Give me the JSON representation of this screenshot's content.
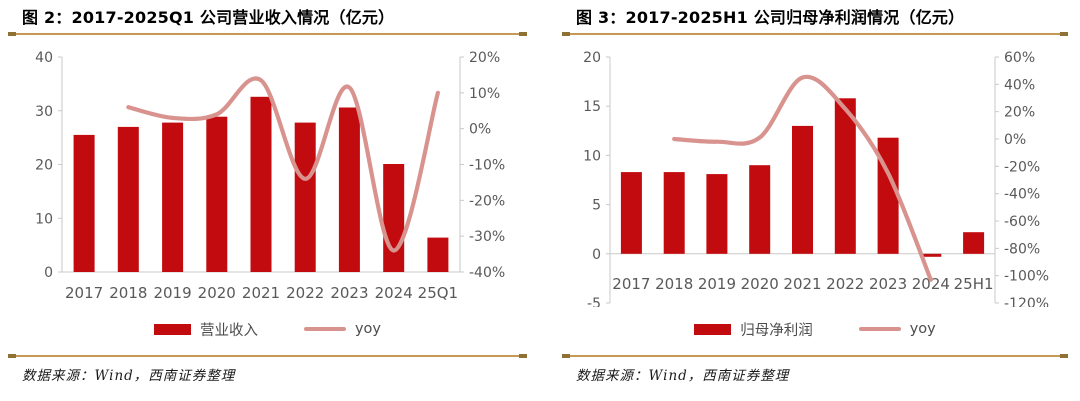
{
  "colors": {
    "bar_red": "#c20b0e",
    "line_pink": "#d9938f",
    "gold_rule": "#c49a55",
    "gold_cap": "#8f7136",
    "axis_text": "#595959",
    "axis_line": "#c9c9c9"
  },
  "figures": [
    {
      "title": "图 2：2017-2025Q1 公司营业收入情况（亿元）",
      "legend": {
        "bar_label": "营业收入",
        "line_label": "yoy"
      },
      "source": "数据来源：Wind，西南证券整理"
    },
    {
      "title": "图 3：2017-2025H1 公司归母净利润情况（亿元）",
      "legend": {
        "bar_label": "归母净利润",
        "line_label": "yoy"
      },
      "source": "数据来源：Wind，西南证券整理"
    }
  ],
  "chart_data": [
    {
      "type": "bar",
      "title": "2017-2025Q1 公司营业收入情况（亿元）",
      "categories": [
        "2017",
        "2018",
        "2019",
        "2020",
        "2021",
        "2022",
        "2023",
        "2024",
        "25Q1"
      ],
      "series": [
        {
          "name": "营业收入",
          "kind": "bar",
          "axis": "left",
          "values": [
            25.5,
            27.0,
            27.8,
            28.9,
            32.6,
            27.8,
            30.6,
            20.1,
            6.4
          ]
        },
        {
          "name": "yoy",
          "kind": "line",
          "axis": "right",
          "values": [
            null,
            6,
            3,
            4,
            13.5,
            -14,
            11.5,
            -34,
            10
          ]
        }
      ],
      "left_axis": {
        "min": 0,
        "max": 40,
        "ticks": [
          0,
          10,
          20,
          30,
          40
        ],
        "unit": ""
      },
      "right_axis": {
        "min": -40,
        "max": 20,
        "ticks": [
          -40,
          -30,
          -20,
          -10,
          0,
          10,
          20
        ],
        "unit": "%"
      },
      "xlabel": "",
      "ylabel": "",
      "grid": false,
      "legend_position": "bottom"
    },
    {
      "type": "bar",
      "title": "2017-2025H1 公司归母净利润情况（亿元）",
      "categories": [
        "2017",
        "2018",
        "2019",
        "2020",
        "2021",
        "2022",
        "2023",
        "2024",
        "25H1"
      ],
      "series": [
        {
          "name": "归母净利润",
          "kind": "bar",
          "axis": "left",
          "values": [
            8.3,
            8.3,
            8.1,
            9.0,
            13.0,
            15.8,
            11.8,
            -0.3,
            2.2
          ]
        },
        {
          "name": "yoy",
          "kind": "line",
          "axis": "right",
          "values": [
            null,
            0,
            -2,
            1,
            45,
            22,
            -25,
            -103,
            null
          ]
        }
      ],
      "left_axis": {
        "min": -5,
        "max": 20,
        "ticks": [
          -5,
          0,
          5,
          10,
          15,
          20
        ],
        "unit": ""
      },
      "right_axis": {
        "min": -120,
        "max": 60,
        "ticks": [
          -120,
          -100,
          -80,
          -60,
          -40,
          -20,
          0,
          20,
          40,
          60
        ],
        "unit": "%"
      },
      "xlabel": "",
      "ylabel": "",
      "grid": false,
      "legend_position": "bottom"
    }
  ]
}
